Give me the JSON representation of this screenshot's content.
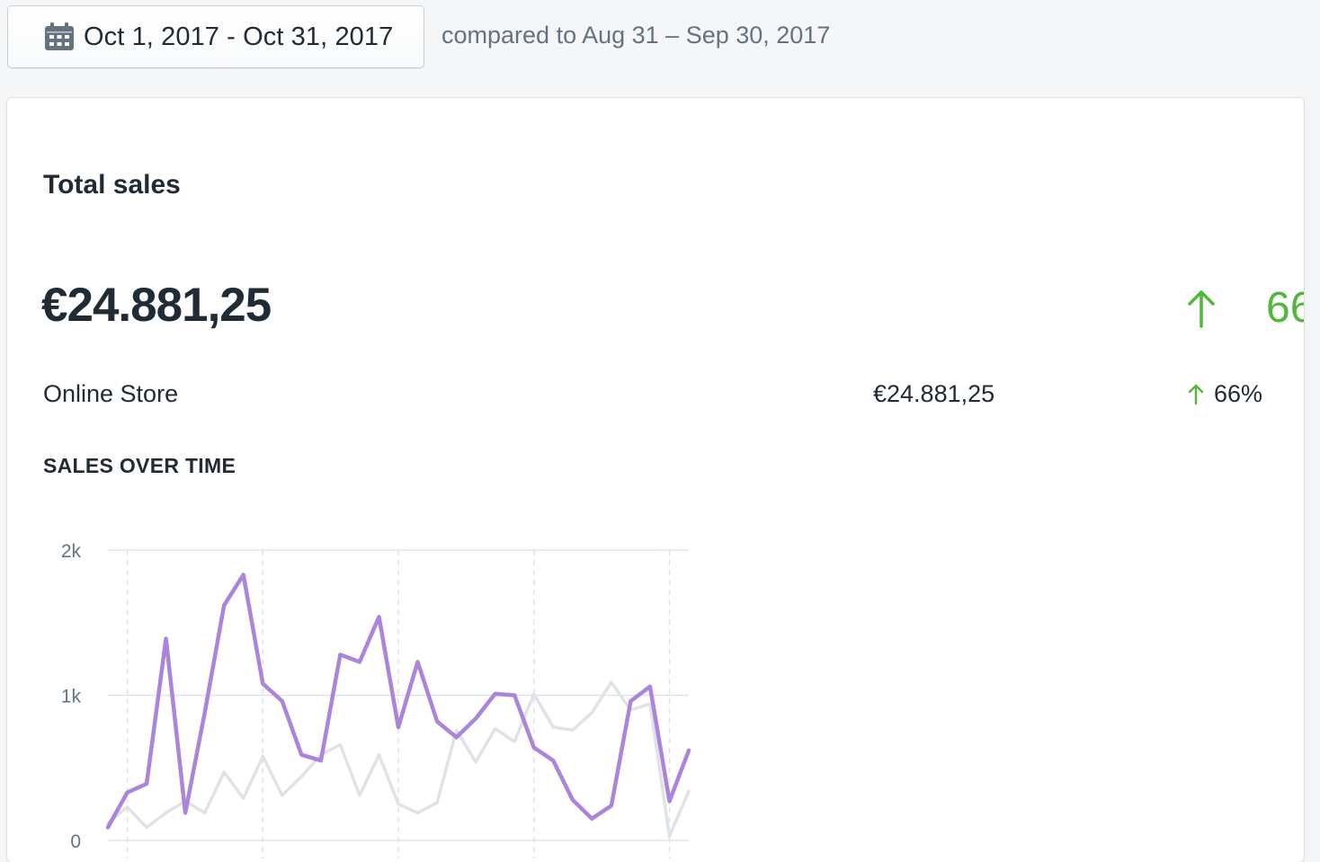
{
  "date_range": {
    "label": "Oct 1, 2017 - Oct 31, 2017",
    "icon": "calendar-icon"
  },
  "comparison": {
    "text": "compared to Aug 31 – Sep 30, 2017"
  },
  "card": {
    "title": "Total sales",
    "total_value": "€24.881,25",
    "change_pct": "66%",
    "change_direction": "up",
    "change_icon": "arrow-up-icon",
    "rows": [
      {
        "label": "Online Store",
        "value": "€24.881,25",
        "change_pct": "66%",
        "change_direction": "up"
      }
    ],
    "section_title": "SALES OVER TIME"
  },
  "colors": {
    "primary_series": "#ab84dd",
    "comparison_series": "#dfe3e8",
    "positive": "#50b83c",
    "text": "#212b36",
    "muted_text": "#637381"
  },
  "chart_data": {
    "type": "line",
    "y_ticks": [
      "2k",
      "1k",
      "0"
    ],
    "ylim": [
      0,
      2000
    ],
    "grid": true,
    "series": [
      {
        "values": [
          90,
          330,
          390,
          1390,
          190,
          880,
          1620,
          1830,
          1080,
          960,
          590,
          550,
          1280,
          1230,
          1540,
          780,
          1230,
          820,
          710,
          840,
          1010,
          1000,
          640,
          550,
          280,
          150,
          240,
          960,
          1060,
          270,
          620
        ]
      },
      {
        "values": [
          120,
          230,
          90,
          190,
          270,
          190,
          470,
          290,
          580,
          310,
          440,
          590,
          660,
          310,
          590,
          250,
          190,
          260,
          760,
          540,
          770,
          680,
          1010,
          780,
          760,
          880,
          1090,
          900,
          940,
          30,
          340
        ]
      }
    ]
  }
}
